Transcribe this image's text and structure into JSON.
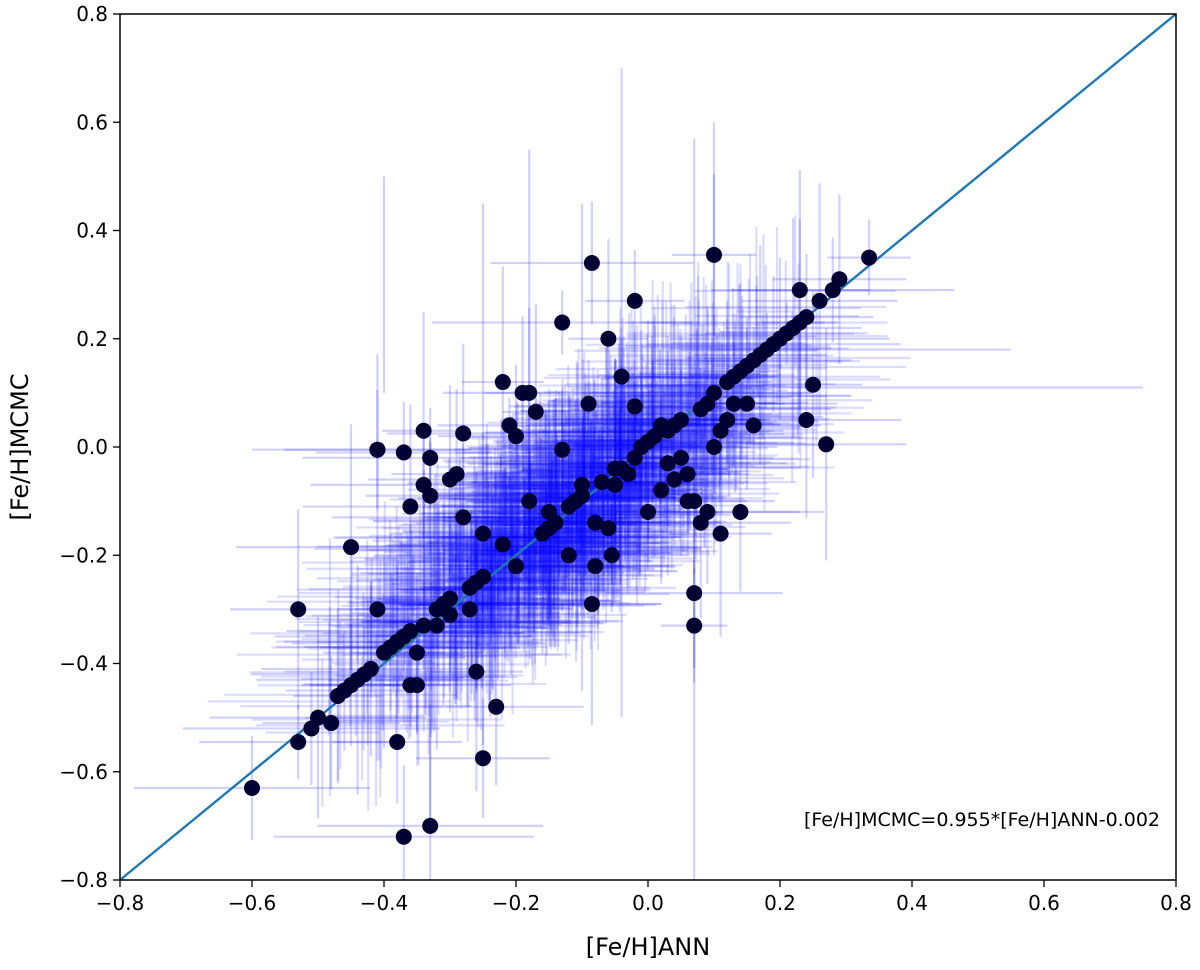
{
  "chart_data": {
    "type": "scatter",
    "title": "",
    "xlabel": "[Fe/H]ANN",
    "ylabel": "[Fe/H]MCMC",
    "xlim": [
      -0.8,
      0.8
    ],
    "ylim": [
      -0.8,
      0.8
    ],
    "x_ticks": [
      "−0.8",
      "−0.6",
      "−0.4",
      "−0.2",
      "0.0",
      "0.2",
      "0.4",
      "0.6",
      "0.8"
    ],
    "y_ticks": [
      "−0.8",
      "−0.6",
      "−0.4",
      "−0.2",
      "0.0",
      "0.2",
      "0.4",
      "0.6",
      "0.8"
    ],
    "grid": false,
    "annotation": "[Fe/H]MCMC=0.955*[Fe/H]ANN-0.002",
    "fit_line": {
      "slope": 0.955,
      "intercept": -0.002
    },
    "colors": {
      "points": "#000033",
      "errorbars": "#0000ff",
      "fit_line": "#1f77b4"
    },
    "series": [
      {
        "x": [
          -0.6,
          -0.53,
          -0.53,
          -0.51,
          -0.5,
          -0.48,
          -0.47,
          -0.46,
          -0.45,
          -0.44,
          -0.43,
          -0.42,
          -0.41,
          -0.41,
          -0.4,
          -0.39,
          -0.38,
          -0.38,
          -0.37,
          -0.37,
          -0.36,
          -0.36,
          -0.35,
          -0.34,
          -0.34,
          -0.33,
          -0.33,
          -0.32,
          -0.31,
          -0.3,
          -0.3,
          -0.29,
          -0.28,
          -0.27,
          -0.26,
          -0.26,
          -0.25,
          -0.25,
          -0.23,
          -0.22,
          -0.21,
          -0.2,
          -0.19,
          -0.18,
          -0.17,
          -0.16,
          -0.15,
          -0.14,
          -0.13,
          -0.12,
          -0.11,
          -0.1,
          -0.09,
          -0.085,
          -0.085,
          -0.08,
          -0.07,
          -0.06,
          -0.055,
          -0.05,
          -0.04,
          -0.03,
          -0.02,
          -0.02,
          -0.01,
          0.0,
          0.01,
          0.02,
          0.03,
          0.04,
          0.05,
          0.06,
          0.07,
          0.07,
          0.08,
          0.09,
          0.1,
          0.1,
          0.11,
          0.12,
          0.13,
          0.14,
          0.15,
          0.16,
          0.17,
          0.18,
          0.19,
          0.2,
          0.21,
          0.22,
          0.23,
          0.23,
          0.24,
          0.24,
          0.25,
          0.26,
          0.27,
          0.28,
          0.29,
          0.335,
          -0.45,
          -0.41,
          -0.37,
          -0.36,
          -0.34,
          -0.33,
          -0.28,
          -0.13,
          -0.02,
          0.07,
          0.09,
          -0.25,
          -0.18,
          -0.1,
          -0.05,
          0.02,
          0.05,
          0.08,
          0.12,
          0.15,
          -0.3,
          -0.32,
          -0.06,
          0.0,
          0.03,
          0.11,
          0.14,
          -0.22,
          -0.15,
          -0.08,
          0.04,
          -0.35,
          -0.27,
          0.06,
          -0.12,
          0.1,
          -0.04,
          0.13,
          -0.2,
          0.16
        ],
        "y": [
          -0.63,
          -0.545,
          -0.3,
          -0.52,
          -0.5,
          -0.51,
          -0.46,
          -0.45,
          -0.44,
          -0.43,
          -0.42,
          -0.41,
          -0.3,
          -0.005,
          -0.38,
          -0.37,
          -0.36,
          -0.545,
          -0.72,
          -0.35,
          -0.44,
          -0.34,
          -0.44,
          -0.33,
          0.03,
          -0.02,
          -0.7,
          -0.3,
          -0.29,
          -0.06,
          -0.28,
          -0.05,
          0.025,
          -0.26,
          -0.415,
          -0.25,
          -0.24,
          -0.575,
          -0.48,
          0.12,
          0.04,
          0.02,
          0.1,
          0.1,
          0.065,
          -0.16,
          -0.15,
          -0.14,
          0.23,
          -0.11,
          -0.1,
          -0.09,
          0.08,
          0.34,
          -0.29,
          -0.22,
          -0.065,
          0.2,
          -0.2,
          -0.04,
          0.13,
          -0.05,
          0.27,
          -0.02,
          0.0,
          0.01,
          0.02,
          0.04,
          0.03,
          0.04,
          0.05,
          -0.1,
          -0.27,
          -0.33,
          0.07,
          0.08,
          0.1,
          0.355,
          -0.16,
          0.12,
          0.13,
          0.14,
          0.15,
          0.16,
          0.17,
          0.18,
          0.19,
          0.2,
          0.21,
          0.22,
          0.29,
          0.23,
          0.24,
          0.05,
          0.115,
          0.27,
          0.005,
          0.29,
          0.31,
          0.35,
          -0.185,
          -0.005,
          -0.01,
          -0.11,
          -0.07,
          -0.09,
          -0.13,
          -0.005,
          0.075,
          -0.1,
          -0.12,
          -0.16,
          -0.1,
          -0.07,
          -0.07,
          -0.08,
          -0.02,
          -0.14,
          0.05,
          0.08,
          -0.31,
          -0.33,
          -0.15,
          -0.12,
          -0.03,
          0.03,
          -0.12,
          -0.18,
          -0.12,
          -0.14,
          -0.06,
          -0.38,
          -0.3,
          -0.05,
          -0.2,
          0.0,
          -0.04,
          0.08,
          -0.22,
          0.04
        ]
      }
    ]
  }
}
